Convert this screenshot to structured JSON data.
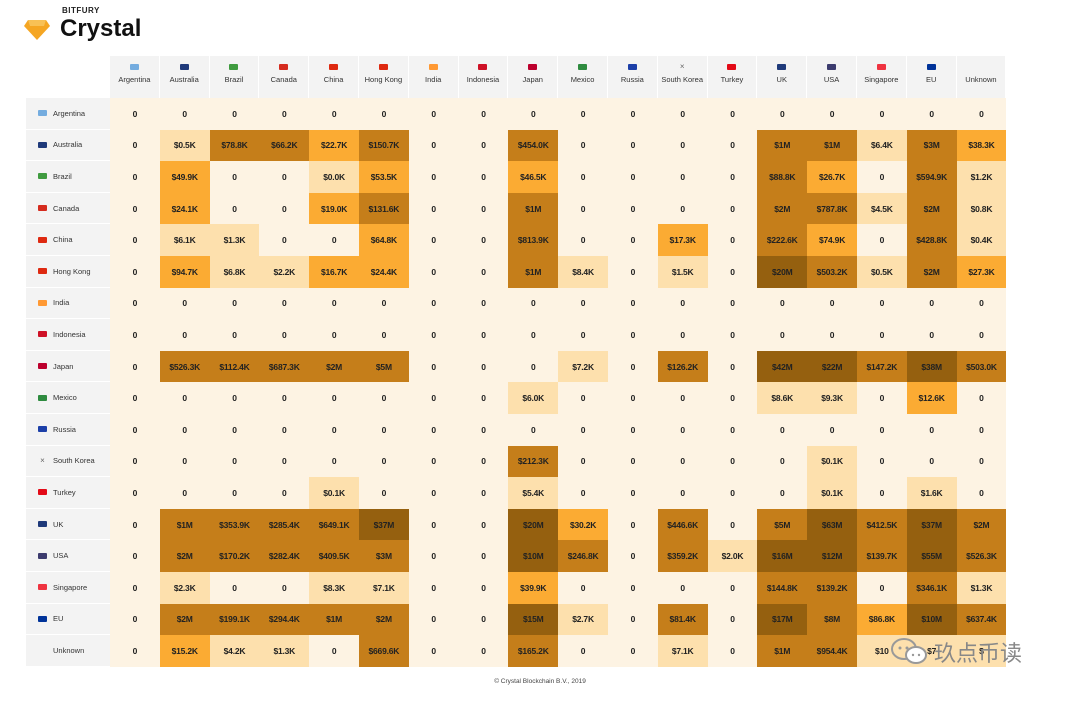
{
  "header": {
    "brand_small": "BITFURY",
    "brand_name": "Crystal"
  },
  "footer": {
    "copyright": "© Crystal Blockchain B.V., 2019"
  },
  "watermark": {
    "text": "玖点币读"
  },
  "colors": {
    "empty": "#fdf3e3",
    "l1": "#fde0ad",
    "l2": "#fbab33",
    "l3": "#c57e1a",
    "l4": "#95600f",
    "headerBg": "#f3f3f3"
  },
  "chart_data": {
    "type": "heatmap",
    "title": "",
    "columns": [
      "Argentina",
      "Australia",
      "Brazil",
      "Canada",
      "China",
      "Hong Kong",
      "India",
      "Indonesia",
      "Japan",
      "Mexico",
      "Russia",
      "South Korea",
      "Turkey",
      "UK",
      "USA",
      "Singapore",
      "EU",
      "Unknown"
    ],
    "rows": [
      "Argentina",
      "Australia",
      "Brazil",
      "Canada",
      "China",
      "Hong Kong",
      "India",
      "Indonesia",
      "Japan",
      "Mexico",
      "Russia",
      "South Korea",
      "Turkey",
      "UK",
      "USA",
      "Singapore",
      "EU",
      "Unknown"
    ],
    "flags": {
      "Argentina": "#74acdf",
      "Australia": "#1f3a7a",
      "Brazil": "#3f9b3f",
      "Canada": "#d52b1e",
      "China": "#de2910",
      "Hong Kong": "#de2910",
      "India": "#ff9933",
      "Indonesia": "#ce1126",
      "Japan": "#bc002d",
      "Mexico": "#2e8b3f",
      "Russia": "#1c3fa8",
      "South Korea": "x",
      "Turkey": "#e30a17",
      "UK": "#1f3a7a",
      "USA": "#3c3b6e",
      "Singapore": "#ef3340",
      "EU": "#003399",
      "Unknown": ""
    },
    "values": [
      [
        "0",
        "0",
        "0",
        "0",
        "0",
        "0",
        "0",
        "0",
        "0",
        "0",
        "0",
        "0",
        "0",
        "0",
        "0",
        "0",
        "0",
        "0"
      ],
      [
        "0",
        "$0.5K",
        "$78.8K",
        "$66.2K",
        "$22.7K",
        "$150.7K",
        "0",
        "0",
        "$454.0K",
        "0",
        "0",
        "0",
        "0",
        "$1M",
        "$1M",
        "$6.4K",
        "$3M",
        "$38.3K"
      ],
      [
        "0",
        "$49.9K",
        "0",
        "0",
        "$0.0K",
        "$53.5K",
        "0",
        "0",
        "$46.5K",
        "0",
        "0",
        "0",
        "0",
        "$88.8K",
        "$26.7K",
        "0",
        "$594.9K",
        "$1.2K"
      ],
      [
        "0",
        "$24.1K",
        "0",
        "0",
        "$19.0K",
        "$131.6K",
        "0",
        "0",
        "$1M",
        "0",
        "0",
        "0",
        "0",
        "$2M",
        "$787.8K",
        "$4.5K",
        "$2M",
        "$0.8K"
      ],
      [
        "0",
        "$6.1K",
        "$1.3K",
        "0",
        "0",
        "$64.8K",
        "0",
        "0",
        "$813.9K",
        "0",
        "0",
        "$17.3K",
        "0",
        "$222.6K",
        "$74.9K",
        "0",
        "$428.8K",
        "$0.4K"
      ],
      [
        "0",
        "$94.7K",
        "$6.8K",
        "$2.2K",
        "$16.7K",
        "$24.4K",
        "0",
        "0",
        "$1M",
        "$8.4K",
        "0",
        "$1.5K",
        "0",
        "$20M",
        "$503.2K",
        "$0.5K",
        "$2M",
        "$27.3K"
      ],
      [
        "0",
        "0",
        "0",
        "0",
        "0",
        "0",
        "0",
        "0",
        "0",
        "0",
        "0",
        "0",
        "0",
        "0",
        "0",
        "0",
        "0",
        "0"
      ],
      [
        "0",
        "0",
        "0",
        "0",
        "0",
        "0",
        "0",
        "0",
        "0",
        "0",
        "0",
        "0",
        "0",
        "0",
        "0",
        "0",
        "0",
        "0"
      ],
      [
        "0",
        "$526.3K",
        "$112.4K",
        "$687.3K",
        "$2M",
        "$5M",
        "0",
        "0",
        "0",
        "$7.2K",
        "0",
        "$126.2K",
        "0",
        "$42M",
        "$22M",
        "$147.2K",
        "$38M",
        "$503.0K"
      ],
      [
        "0",
        "0",
        "0",
        "0",
        "0",
        "0",
        "0",
        "0",
        "$6.0K",
        "0",
        "0",
        "0",
        "0",
        "$8.6K",
        "$9.3K",
        "0",
        "$12.6K",
        "0"
      ],
      [
        "0",
        "0",
        "0",
        "0",
        "0",
        "0",
        "0",
        "0",
        "0",
        "0",
        "0",
        "0",
        "0",
        "0",
        "0",
        "0",
        "0",
        "0"
      ],
      [
        "0",
        "0",
        "0",
        "0",
        "0",
        "0",
        "0",
        "0",
        "$212.3K",
        "0",
        "0",
        "0",
        "0",
        "0",
        "$0.1K",
        "0",
        "0",
        "0"
      ],
      [
        "0",
        "0",
        "0",
        "0",
        "$0.1K",
        "0",
        "0",
        "0",
        "$5.4K",
        "0",
        "0",
        "0",
        "0",
        "0",
        "$0.1K",
        "0",
        "$1.6K",
        "0"
      ],
      [
        "0",
        "$1M",
        "$353.9K",
        "$285.4K",
        "$649.1K",
        "$37M",
        "0",
        "0",
        "$20M",
        "$30.2K",
        "0",
        "$446.6K",
        "0",
        "$5M",
        "$63M",
        "$412.5K",
        "$37M",
        "$2M"
      ],
      [
        "0",
        "$2M",
        "$170.2K",
        "$282.4K",
        "$409.5K",
        "$3M",
        "0",
        "0",
        "$10M",
        "$246.8K",
        "0",
        "$359.2K",
        "$2.0K",
        "$16M",
        "$12M",
        "$139.7K",
        "$55M",
        "$526.3K"
      ],
      [
        "0",
        "$2.3K",
        "0",
        "0",
        "$8.3K",
        "$7.1K",
        "0",
        "0",
        "$39.9K",
        "0",
        "0",
        "0",
        "0",
        "$144.8K",
        "$139.2K",
        "0",
        "$346.1K",
        "$1.3K"
      ],
      [
        "0",
        "$2M",
        "$199.1K",
        "$294.4K",
        "$1M",
        "$2M",
        "0",
        "0",
        "$15M",
        "$2.7K",
        "0",
        "$81.4K",
        "0",
        "$17M",
        "$8M",
        "$86.8K",
        "$10M",
        "$637.4K"
      ],
      [
        "0",
        "$15.2K",
        "$4.2K",
        "$1.3K",
        "0",
        "$669.6K",
        "0",
        "0",
        "$165.2K",
        "0",
        "0",
        "$7.1K",
        "0",
        "$1M",
        "$954.4K",
        "$10",
        "$7",
        "$"
      ]
    ],
    "shade_levels": [
      [
        0,
        0,
        0,
        0,
        0,
        0,
        0,
        0,
        0,
        0,
        0,
        0,
        0,
        0,
        0,
        0,
        0,
        0
      ],
      [
        0,
        1,
        3,
        3,
        2,
        3,
        0,
        0,
        3,
        0,
        0,
        0,
        0,
        3,
        3,
        1,
        3,
        2
      ],
      [
        0,
        2,
        0,
        0,
        1,
        2,
        0,
        0,
        2,
        0,
        0,
        0,
        0,
        3,
        2,
        0,
        3,
        1
      ],
      [
        0,
        2,
        0,
        0,
        2,
        3,
        0,
        0,
        3,
        0,
        0,
        0,
        0,
        3,
        3,
        1,
        3,
        1
      ],
      [
        0,
        1,
        1,
        0,
        0,
        2,
        0,
        0,
        3,
        0,
        0,
        2,
        0,
        3,
        2,
        0,
        3,
        1
      ],
      [
        0,
        2,
        1,
        1,
        2,
        2,
        0,
        0,
        3,
        1,
        0,
        1,
        0,
        4,
        3,
        1,
        3,
        2
      ],
      [
        0,
        0,
        0,
        0,
        0,
        0,
        0,
        0,
        0,
        0,
        0,
        0,
        0,
        0,
        0,
        0,
        0,
        0
      ],
      [
        0,
        0,
        0,
        0,
        0,
        0,
        0,
        0,
        0,
        0,
        0,
        0,
        0,
        0,
        0,
        0,
        0,
        0
      ],
      [
        0,
        3,
        3,
        3,
        3,
        3,
        0,
        0,
        0,
        1,
        0,
        3,
        0,
        4,
        4,
        3,
        4,
        3
      ],
      [
        0,
        0,
        0,
        0,
        0,
        0,
        0,
        0,
        1,
        0,
        0,
        0,
        0,
        1,
        1,
        0,
        2,
        0
      ],
      [
        0,
        0,
        0,
        0,
        0,
        0,
        0,
        0,
        0,
        0,
        0,
        0,
        0,
        0,
        0,
        0,
        0,
        0
      ],
      [
        0,
        0,
        0,
        0,
        0,
        0,
        0,
        0,
        3,
        0,
        0,
        0,
        0,
        0,
        1,
        0,
        0,
        0
      ],
      [
        0,
        0,
        0,
        0,
        1,
        0,
        0,
        0,
        1,
        0,
        0,
        0,
        0,
        0,
        1,
        0,
        1,
        0
      ],
      [
        0,
        3,
        3,
        3,
        3,
        4,
        0,
        0,
        4,
        2,
        0,
        3,
        0,
        3,
        4,
        3,
        4,
        3
      ],
      [
        0,
        3,
        3,
        3,
        3,
        3,
        0,
        0,
        4,
        3,
        0,
        3,
        1,
        4,
        4,
        3,
        4,
        3
      ],
      [
        0,
        1,
        0,
        0,
        1,
        1,
        0,
        0,
        2,
        0,
        0,
        0,
        0,
        3,
        3,
        0,
        3,
        1
      ],
      [
        0,
        3,
        3,
        3,
        3,
        3,
        0,
        0,
        4,
        1,
        0,
        3,
        0,
        4,
        3,
        2,
        4,
        3
      ],
      [
        0,
        2,
        1,
        1,
        0,
        3,
        0,
        0,
        3,
        0,
        0,
        1,
        0,
        3,
        3,
        1,
        1,
        1
      ]
    ]
  }
}
